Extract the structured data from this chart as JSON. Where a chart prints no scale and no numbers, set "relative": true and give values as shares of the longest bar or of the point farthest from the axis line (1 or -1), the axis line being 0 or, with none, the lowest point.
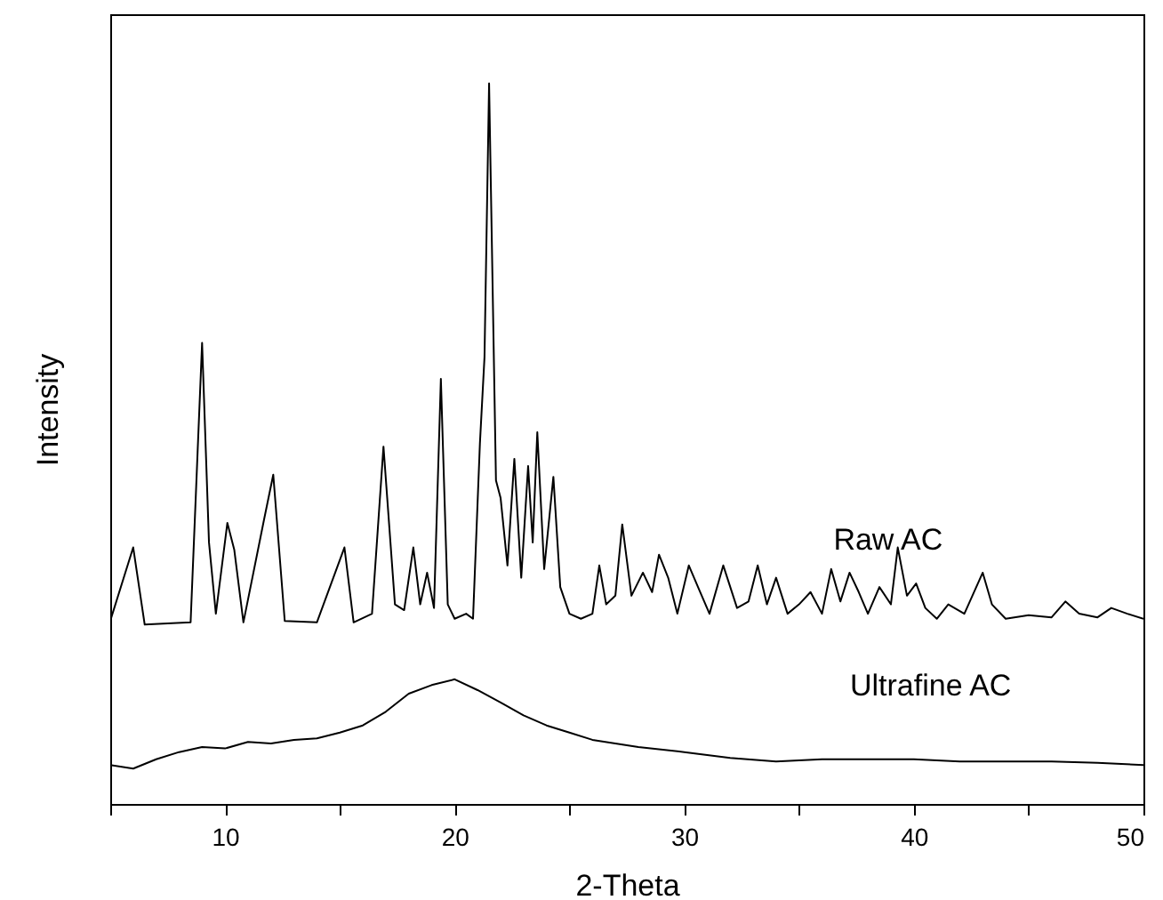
{
  "chart_data": {
    "type": "line",
    "xlabel": "2-Theta",
    "ylabel": "Intensity",
    "relative": true,
    "marker": "none",
    "line_style": "solid",
    "xlim": [
      5,
      50
    ],
    "xticks": [
      {
        "value": 5,
        "label": null
      },
      10,
      {
        "value": 15,
        "label": null
      },
      20,
      {
        "value": 25,
        "label": null
      },
      30,
      {
        "value": 35,
        "label": null
      },
      40,
      {
        "value": 45,
        "label": null
      },
      50
    ],
    "series": [
      {
        "name": "Raw AC",
        "color": "#000000",
        "x": [
          5,
          6,
          6.5,
          8.5,
          9,
          9.3,
          9.6,
          10.1,
          10.4,
          10.8,
          11.7,
          12.1,
          12.6,
          14,
          15.2,
          15.6,
          16.4,
          16.9,
          17.4,
          17.8,
          18.2,
          18.5,
          18.8,
          19.1,
          19.4,
          19.7,
          20,
          20.5,
          20.8,
          21.1,
          21.3,
          21.5,
          21.8,
          22,
          22.3,
          22.6,
          22.9,
          23.2,
          23.4,
          23.6,
          23.9,
          24.3,
          24.6,
          25,
          25.5,
          26,
          26.3,
          26.6,
          27,
          27.3,
          27.7,
          28.2,
          28.6,
          28.9,
          29.3,
          29.7,
          30.2,
          30.6,
          31.1,
          31.7,
          32.3,
          32.8,
          33.2,
          33.6,
          34,
          34.5,
          35,
          35.5,
          36,
          36.4,
          36.8,
          37.2,
          37.6,
          38,
          38.5,
          39,
          39.3,
          39.7,
          40.1,
          40.5,
          41,
          41.5,
          42.2,
          43,
          43.4,
          44,
          45,
          46,
          46.6,
          47.2,
          48,
          48.6,
          49.3,
          50
        ],
        "values": [
          0.254,
          0.356,
          0.249,
          0.252,
          0.64,
          0.363,
          0.264,
          0.39,
          0.353,
          0.252,
          0.395,
          0.457,
          0.254,
          0.252,
          0.356,
          0.252,
          0.264,
          0.496,
          0.277,
          0.269,
          0.356,
          0.277,
          0.321,
          0.272,
          0.59,
          0.277,
          0.257,
          0.264,
          0.257,
          0.5,
          0.62,
          1.0,
          0.449,
          0.425,
          0.331,
          0.479,
          0.314,
          0.469,
          0.363,
          0.516,
          0.326,
          0.454,
          0.301,
          0.264,
          0.257,
          0.264,
          0.331,
          0.277,
          0.289,
          0.388,
          0.289,
          0.321,
          0.294,
          0.346,
          0.314,
          0.264,
          0.331,
          0.301,
          0.264,
          0.331,
          0.272,
          0.281,
          0.331,
          0.277,
          0.314,
          0.264,
          0.277,
          0.294,
          0.264,
          0.326,
          0.281,
          0.321,
          0.294,
          0.264,
          0.301,
          0.277,
          0.356,
          0.289,
          0.306,
          0.272,
          0.257,
          0.277,
          0.264,
          0.321,
          0.277,
          0.257,
          0.262,
          0.259,
          0.281,
          0.264,
          0.259,
          0.272,
          0.264,
          0.257
        ]
      },
      {
        "name": "Ultrafine AC",
        "color": "#000000",
        "x": [
          5,
          6,
          7,
          8,
          9,
          10,
          11,
          12,
          13,
          14,
          15,
          16,
          17,
          18,
          19,
          20,
          21,
          22,
          23,
          24,
          25,
          26,
          27,
          28,
          30,
          32,
          34,
          36,
          38,
          40,
          42,
          44,
          46,
          48,
          50
        ],
        "values": [
          0.054,
          0.049,
          0.062,
          0.072,
          0.079,
          0.077,
          0.086,
          0.084,
          0.089,
          0.091,
          0.099,
          0.109,
          0.128,
          0.153,
          0.165,
          0.173,
          0.158,
          0.141,
          0.123,
          0.109,
          0.099,
          0.089,
          0.084,
          0.079,
          0.072,
          0.064,
          0.059,
          0.062,
          0.062,
          0.062,
          0.059,
          0.059,
          0.059,
          0.057,
          0.054
        ]
      }
    ]
  }
}
